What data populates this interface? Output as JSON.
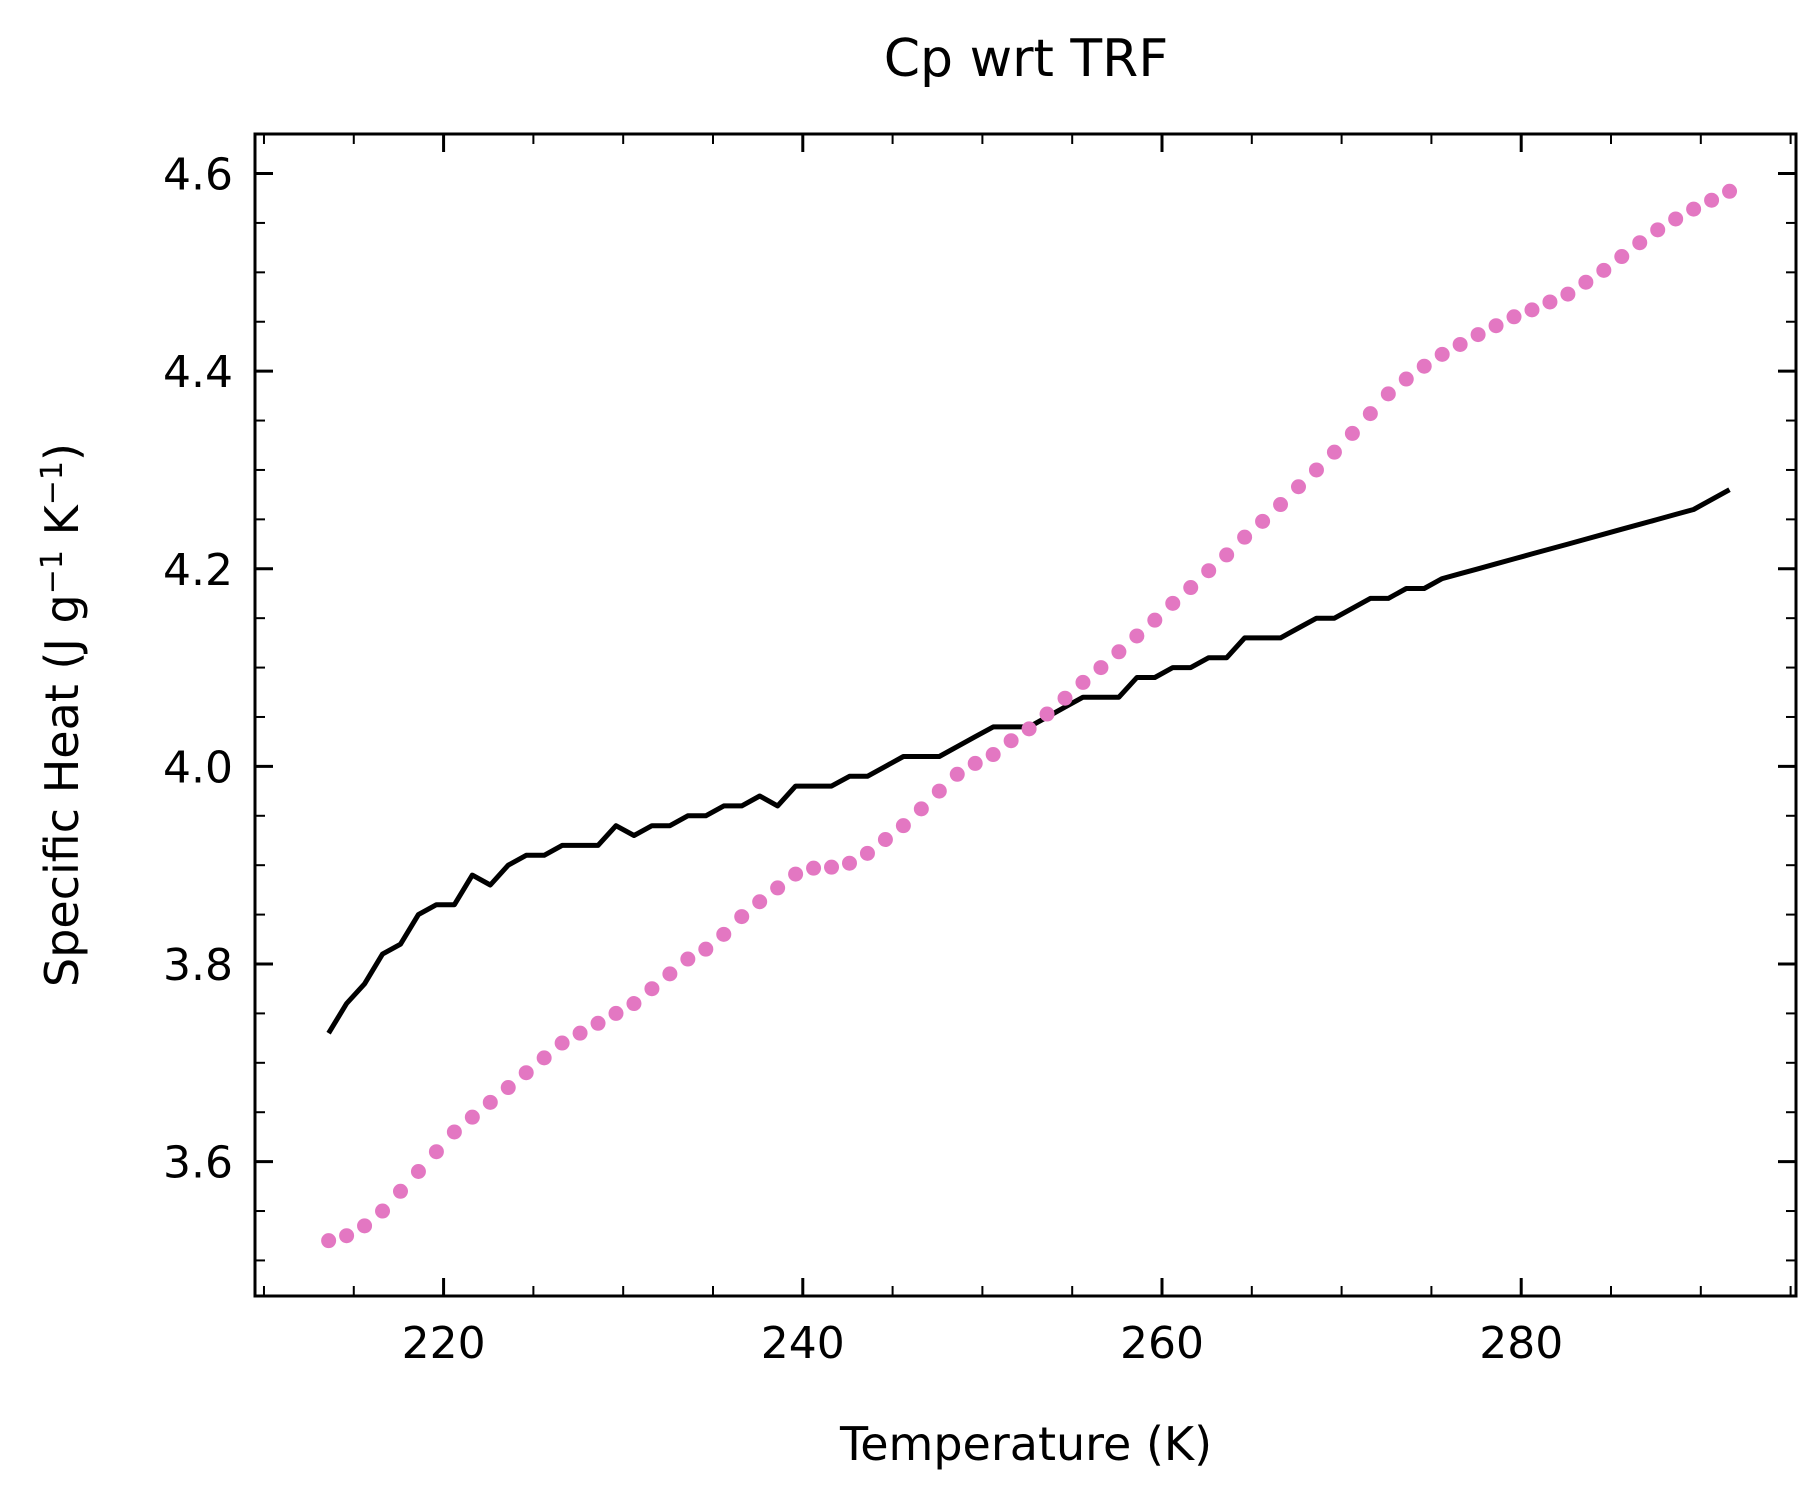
{
  "chart_data": {
    "type": "line",
    "title": "Cp wrt TRF",
    "xlabel": "Temperature (K)",
    "ylabel": {
      "main": "Specific Heat (J g",
      "sup1": "−1",
      "mid": " K",
      "sup2": "−1",
      "end": ")"
    },
    "xlim": [
      209.5,
      295.3
    ],
    "ylim": [
      3.464,
      4.64
    ],
    "x_ticks": [
      220,
      240,
      260,
      280
    ],
    "x_tick_labels": [
      "220",
      "240",
      "260",
      "280"
    ],
    "y_ticks": [
      3.6,
      3.8,
      4.0,
      4.2,
      4.4,
      4.6
    ],
    "y_tick_labels": [
      "3.6",
      "3.8",
      "4.0",
      "4.2",
      "4.4",
      "4.6"
    ],
    "x_minor_step": 5,
    "y_minor_step": 0.05,
    "grid": false,
    "colors": {
      "solid_series": "#000000",
      "dotted_series": "#e377c2"
    },
    "series": [
      {
        "style": "solid",
        "color": "#000000",
        "x": [
          213.6,
          214.6,
          215.6,
          216.6,
          217.6,
          218.6,
          219.6,
          220.6,
          221.6,
          222.6,
          223.6,
          224.6,
          225.6,
          226.6,
          227.6,
          228.6,
          229.6,
          230.6,
          231.6,
          232.6,
          233.6,
          234.6,
          235.6,
          236.6,
          237.6,
          238.6,
          239.6,
          240.6,
          241.6,
          242.6,
          243.6,
          244.6,
          245.6,
          246.6,
          247.6,
          248.6,
          249.6,
          250.6,
          251.6,
          252.6,
          253.6,
          254.6,
          255.6,
          256.6,
          257.6,
          258.6,
          259.6,
          260.6,
          261.6,
          262.6,
          263.6,
          264.6,
          265.6,
          266.6,
          267.6,
          268.6,
          269.6,
          270.6,
          271.6,
          272.6,
          273.6,
          274.6,
          275.6,
          276.6,
          277.6,
          278.6,
          279.6,
          280.6,
          281.6,
          282.6,
          283.6,
          284.6,
          285.6,
          286.6,
          287.6,
          288.6,
          289.6,
          290.6,
          291.6
        ],
        "y": [
          3.73,
          3.76,
          3.78,
          3.81,
          3.82,
          3.85,
          3.86,
          3.86,
          3.89,
          3.88,
          3.9,
          3.91,
          3.91,
          3.92,
          3.92,
          3.92,
          3.94,
          3.93,
          3.94,
          3.94,
          3.95,
          3.95,
          3.96,
          3.96,
          3.97,
          3.96,
          3.98,
          3.98,
          3.98,
          3.99,
          3.99,
          4.0,
          4.01,
          4.01,
          4.01,
          4.02,
          4.03,
          4.04,
          4.04,
          4.04,
          4.05,
          4.06,
          4.07,
          4.07,
          4.07,
          4.09,
          4.09,
          4.1,
          4.1,
          4.11,
          4.11,
          4.13,
          4.13,
          4.13,
          4.14,
          4.15,
          4.15,
          4.16,
          4.17,
          4.17,
          4.18,
          4.18,
          4.19,
          4.195,
          4.2,
          4.205,
          4.21,
          4.215,
          4.22,
          4.225,
          4.23,
          4.235,
          4.24,
          4.245,
          4.25,
          4.255,
          4.26,
          4.27,
          4.28
        ]
      },
      {
        "style": "dotted",
        "color": "#e377c2",
        "x": [
          213.6,
          214.6,
          215.6,
          216.6,
          217.6,
          218.6,
          219.6,
          220.6,
          221.6,
          222.6,
          223.6,
          224.6,
          225.6,
          226.6,
          227.6,
          228.6,
          229.6,
          230.6,
          231.6,
          232.6,
          233.6,
          234.6,
          235.6,
          236.6,
          237.6,
          238.6,
          239.6,
          240.6,
          241.6,
          242.6,
          243.6,
          244.6,
          245.6,
          246.6,
          247.6,
          248.6,
          249.6,
          250.6,
          251.6,
          252.6,
          253.6,
          254.6,
          255.6,
          256.6,
          257.6,
          258.6,
          259.6,
          260.6,
          261.6,
          262.6,
          263.6,
          264.6,
          265.6,
          266.6,
          267.6,
          268.6,
          269.6,
          270.6,
          271.6,
          272.6,
          273.6,
          274.6,
          275.6,
          276.6,
          277.6,
          278.6,
          279.6,
          280.6,
          281.6,
          282.6,
          283.6,
          284.6,
          285.6,
          286.6,
          287.6,
          288.6,
          289.6,
          290.6,
          291.6
        ],
        "y": [
          3.52,
          3.525,
          3.535,
          3.55,
          3.57,
          3.59,
          3.61,
          3.63,
          3.645,
          3.66,
          3.675,
          3.69,
          3.705,
          3.72,
          3.73,
          3.74,
          3.75,
          3.76,
          3.775,
          3.79,
          3.805,
          3.815,
          3.83,
          3.848,
          3.863,
          3.877,
          3.891,
          3.897,
          3.898,
          3.902,
          3.912,
          3.926,
          3.94,
          3.957,
          3.975,
          3.992,
          4.003,
          4.012,
          4.026,
          4.038,
          4.053,
          4.069,
          4.085,
          4.1,
          4.116,
          4.132,
          4.148,
          4.165,
          4.181,
          4.198,
          4.214,
          4.232,
          4.248,
          4.265,
          4.283,
          4.3,
          4.318,
          4.337,
          4.357,
          4.377,
          4.392,
          4.405,
          4.417,
          4.427,
          4.437,
          4.446,
          4.455,
          4.462,
          4.47,
          4.478,
          4.49,
          4.502,
          4.516,
          4.53,
          4.543,
          4.554,
          4.564,
          4.573,
          4.582
        ]
      }
    ]
  }
}
